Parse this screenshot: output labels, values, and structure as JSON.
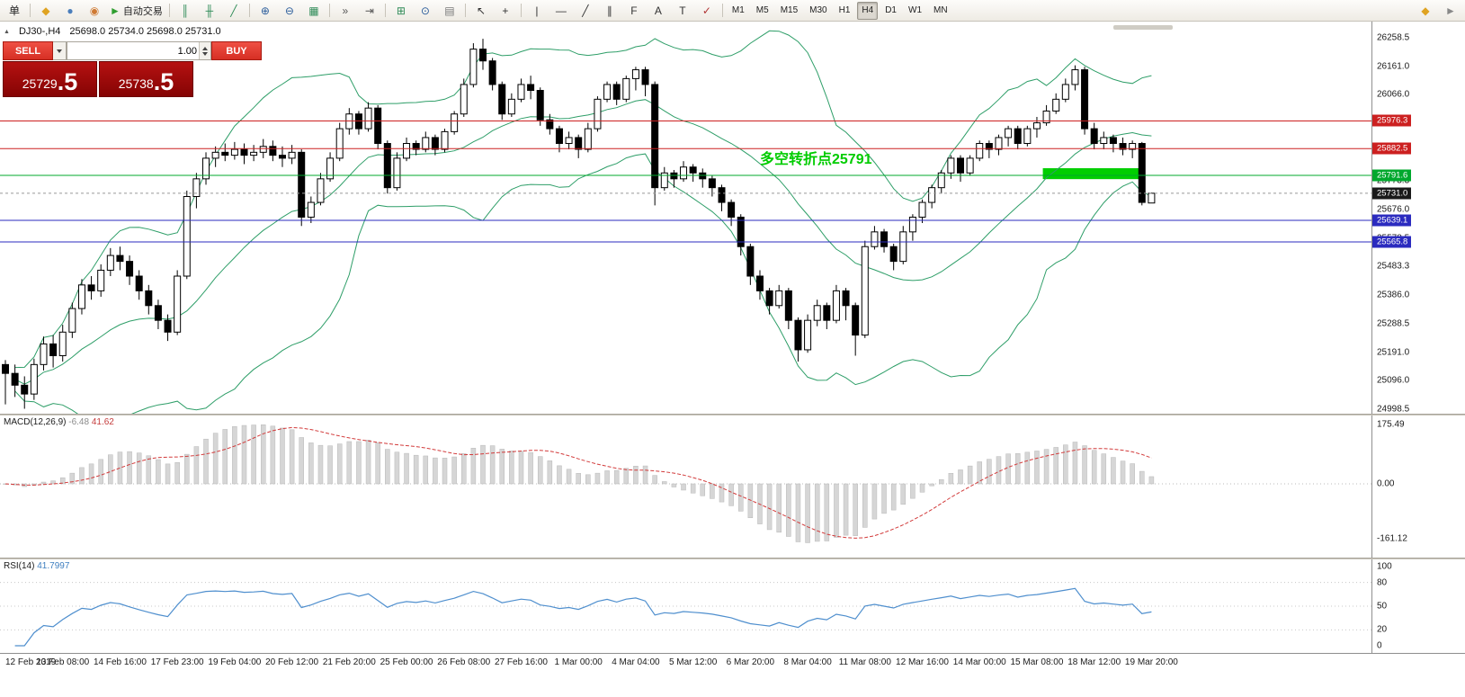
{
  "toolbar": {
    "items": [
      {
        "name": "new-order-button",
        "glyph": "单",
        "color": "#222",
        "text_button": true
      },
      {
        "sep": true
      },
      {
        "name": "chart-window-icon",
        "glyph": "◆",
        "color": "#dfa321"
      },
      {
        "name": "market-watch-icon",
        "glyph": "●",
        "color": "#4a7ebb"
      },
      {
        "name": "navigator-icon",
        "glyph": "◉",
        "color": "#cf7a33"
      },
      {
        "name": "autotrading-button",
        "glyph": "►",
        "color": "#2f9e2f",
        "label": "自动交易"
      },
      {
        "sep": true
      },
      {
        "name": "bar-chart-icon",
        "glyph": "║",
        "color": "#2e8b57"
      },
      {
        "name": "candlestick-chart-icon",
        "glyph": "╫",
        "color": "#2e8b57"
      },
      {
        "name": "line-chart-icon",
        "glyph": "╱",
        "color": "#2e8b57"
      },
      {
        "sep": true
      },
      {
        "name": "zoom-in-icon",
        "glyph": "⊕",
        "color": "#2b5d9b"
      },
      {
        "name": "zoom-out-icon",
        "glyph": "⊖",
        "color": "#2b5d9b"
      },
      {
        "name": "grid-icon",
        "glyph": "▦",
        "color": "#2e8b57"
      },
      {
        "sep": true
      },
      {
        "name": "auto-scroll-icon",
        "glyph": "»",
        "color": "#555555"
      },
      {
        "name": "chart-shift-icon",
        "glyph": "⇥",
        "color": "#555555"
      },
      {
        "sep": true
      },
      {
        "name": "new-chart-icon",
        "glyph": "⊞",
        "color": "#2e8b57"
      },
      {
        "name": "period-icon",
        "glyph": "⊙",
        "color": "#2b5d9b"
      },
      {
        "name": "indicators-icon",
        "glyph": "▤",
        "color": "#777777"
      },
      {
        "sep": true
      },
      {
        "name": "cursor-icon",
        "glyph": "↖",
        "color": "#333333"
      },
      {
        "name": "crosshair-icon",
        "glyph": "+",
        "color": "#333333"
      },
      {
        "sep": true
      },
      {
        "name": "vertical-line-icon",
        "glyph": "|",
        "color": "#333333"
      },
      {
        "name": "horizontal-line-icon",
        "glyph": "—",
        "color": "#333333"
      },
      {
        "name": "trendline-icon",
        "glyph": "╱",
        "color": "#333333"
      },
      {
        "name": "channel-icon",
        "glyph": "∥",
        "color": "#333333"
      },
      {
        "name": "fibonacci-icon",
        "glyph": "F",
        "color": "#333333"
      },
      {
        "name": "text-icon",
        "glyph": "A",
        "color": "#333333"
      },
      {
        "name": "text-label-icon",
        "glyph": "T",
        "color": "#333333"
      },
      {
        "name": "arrows-icon",
        "glyph": "✓",
        "color": "#b03333"
      },
      {
        "sep": true
      }
    ],
    "timeframes": [
      {
        "label": "M1"
      },
      {
        "label": "M5"
      },
      {
        "label": "M15"
      },
      {
        "label": "M30"
      },
      {
        "label": "H1"
      },
      {
        "label": "H4",
        "active": true
      },
      {
        "label": "D1"
      },
      {
        "label": "W1"
      },
      {
        "label": "MN"
      }
    ],
    "right_items": [
      {
        "name": "pin-icon",
        "glyph": "◆",
        "color": "#dfa321"
      },
      {
        "name": "detach-icon",
        "glyph": "►",
        "color": "#888888"
      }
    ]
  },
  "chart": {
    "header": {
      "collapse_glyph": "▲",
      "symbol_period": "DJ30-,H4",
      "ohlc": "25698.0 25734.0 25698.0 25731.0"
    },
    "trade_panel": {
      "sell_label": "SELL",
      "buy_label": "BUY",
      "volume": "1.00",
      "sell_price_main": "25729",
      "sell_price_frac": ".5",
      "buy_price_main": "25738",
      "buy_price_frac": ".5"
    }
  },
  "chart_data": {
    "type": "candlestick",
    "symbol": "DJ30-",
    "timeframe": "H4",
    "title": "DJ30-,H4",
    "ylim": [
      24998.5,
      26258.5
    ],
    "y_ticks": {
      "labels": [
        "26258.5",
        "26161.0",
        "26066.0",
        "25968.5",
        "25871.0",
        "25773.3",
        "25676.0",
        "25578.5",
        "25483.3",
        "25386.0",
        "25288.5",
        "25191.0",
        "25096.0",
        "24998.5"
      ],
      "values": [
        26258.5,
        26161.0,
        26066.0,
        25968.5,
        25871.0,
        25773.3,
        25676.0,
        25578.5,
        25483.3,
        25386.0,
        25288.5,
        25191.0,
        25096.0,
        24998.5
      ]
    },
    "x_ticks": {
      "labels": [
        "12 Feb 2019",
        "13 Feb 08:00",
        "14 Feb 16:00",
        "17 Feb 23:00",
        "19 Feb 04:00",
        "20 Feb 12:00",
        "21 Feb 20:00",
        "25 Feb 00:00",
        "26 Feb 08:00",
        "27 Feb 16:00",
        "1 Mar 00:00",
        "4 Mar 04:00",
        "5 Mar 12:00",
        "6 Mar 20:00",
        "8 Mar 04:00",
        "11 Mar 08:00",
        "12 Mar 16:00",
        "14 Mar 00:00",
        "15 Mar 08:00",
        "18 Mar 12:00",
        "19 Mar 20:00"
      ],
      "step": 6
    },
    "bands": {
      "type": "bollinger",
      "period": 20,
      "deviation": 2,
      "color": "#2e9e68"
    },
    "hlines": [
      {
        "price": 25976.3,
        "label": "25976.3",
        "color": "#cc2020"
      },
      {
        "price": 25882.5,
        "label": "25882.5",
        "color": "#cc2020"
      },
      {
        "price": 25791.6,
        "label": "25791.6",
        "color": "#00a82d"
      },
      {
        "price": 25639.1,
        "label": "25639.1",
        "color": "#2b2bbf"
      },
      {
        "price": 25565.8,
        "label": "25565.8",
        "color": "#2b2bbf"
      }
    ],
    "current_price": {
      "price": 25731.0,
      "label": "25731.0",
      "color": "#1a1a1a"
    },
    "rect": {
      "start_index": 109,
      "end_index": 119,
      "price_top": 25816,
      "price_bottom": 25779,
      "color": "#00ce00"
    },
    "annotation": {
      "text": "多空转折点25791",
      "color": "#00cc00",
      "x": 845,
      "y": 158
    },
    "candles": [
      [
        25150,
        25165,
        25015,
        25120
      ],
      [
        25120,
        25150,
        25040,
        25080
      ],
      [
        25080,
        25110,
        25000,
        25050
      ],
      [
        25050,
        25170,
        25030,
        25150
      ],
      [
        25150,
        25245,
        25130,
        25220
      ],
      [
        25220,
        25250,
        25140,
        25180
      ],
      [
        25180,
        25285,
        25160,
        25260
      ],
      [
        25260,
        25360,
        25240,
        25340
      ],
      [
        25340,
        25440,
        25320,
        25420
      ],
      [
        25420,
        25450,
        25370,
        25400
      ],
      [
        25400,
        25490,
        25380,
        25470
      ],
      [
        25470,
        25545,
        25450,
        25520
      ],
      [
        25520,
        25550,
        25470,
        25500
      ],
      [
        25500,
        25520,
        25420,
        25450
      ],
      [
        25450,
        25470,
        25370,
        25400
      ],
      [
        25400,
        25420,
        25320,
        25350
      ],
      [
        25350,
        25370,
        25270,
        25300
      ],
      [
        25300,
        25320,
        25230,
        25260
      ],
      [
        25260,
        25470,
        25250,
        25450
      ],
      [
        25450,
        25740,
        25440,
        25720
      ],
      [
        25720,
        25800,
        25680,
        25780
      ],
      [
        25780,
        25870,
        25760,
        25850
      ],
      [
        25850,
        25890,
        25820,
        25870
      ],
      [
        25870,
        25900,
        25840,
        25860
      ],
      [
        25860,
        25905,
        25845,
        25880
      ],
      [
        25880,
        25900,
        25830,
        25860
      ],
      [
        25860,
        25895,
        25840,
        25870
      ],
      [
        25870,
        25915,
        25850,
        25890
      ],
      [
        25890,
        25910,
        25840,
        25860
      ],
      [
        25860,
        25890,
        25820,
        25850
      ],
      [
        25850,
        25895,
        25830,
        25870
      ],
      [
        25870,
        25880,
        25620,
        25650
      ],
      [
        25650,
        25720,
        25630,
        25700
      ],
      [
        25700,
        25800,
        25690,
        25780
      ],
      [
        25780,
        25870,
        25770,
        25850
      ],
      [
        25850,
        25970,
        25840,
        25950
      ],
      [
        25950,
        26020,
        25930,
        26000
      ],
      [
        26000,
        26010,
        25930,
        25950
      ],
      [
        25950,
        26040,
        25940,
        26020
      ],
      [
        26020,
        26030,
        25880,
        25900
      ],
      [
        25900,
        25910,
        25730,
        25750
      ],
      [
        25750,
        25870,
        25740,
        25850
      ],
      [
        25850,
        25920,
        25840,
        25900
      ],
      [
        25900,
        25910,
        25860,
        25880
      ],
      [
        25880,
        25940,
        25870,
        25920
      ],
      [
        25920,
        25930,
        25860,
        25880
      ],
      [
        25880,
        25950,
        25870,
        25940
      ],
      [
        25940,
        26010,
        25930,
        26000
      ],
      [
        26000,
        26120,
        25990,
        26100
      ],
      [
        26100,
        26240,
        26090,
        26220
      ],
      [
        26220,
        26255,
        26150,
        26180
      ],
      [
        26180,
        26190,
        26080,
        26100
      ],
      [
        26100,
        26110,
        25980,
        26000
      ],
      [
        26000,
        26070,
        25990,
        26050
      ],
      [
        26050,
        26120,
        26040,
        26100
      ],
      [
        26100,
        26130,
        26050,
        26080
      ],
      [
        26080,
        26090,
        25960,
        25980
      ],
      [
        25980,
        26000,
        25930,
        25950
      ],
      [
        25950,
        25960,
        25870,
        25900
      ],
      [
        25900,
        25940,
        25880,
        25920
      ],
      [
        25920,
        25930,
        25850,
        25880
      ],
      [
        25880,
        25970,
        25870,
        25950
      ],
      [
        25950,
        26060,
        25940,
        26050
      ],
      [
        26050,
        26110,
        26040,
        26100
      ],
      [
        26100,
        26110,
        26030,
        26050
      ],
      [
        26050,
        26130,
        26040,
        26120
      ],
      [
        26120,
        26160,
        26080,
        26150
      ],
      [
        26150,
        26160,
        26060,
        26100
      ],
      [
        26100,
        26110,
        25690,
        25750
      ],
      [
        25750,
        25820,
        25740,
        25800
      ],
      [
        25800,
        25810,
        25750,
        25780
      ],
      [
        25780,
        25840,
        25770,
        25820
      ],
      [
        25820,
        25830,
        25770,
        25800
      ],
      [
        25800,
        25815,
        25750,
        25780
      ],
      [
        25780,
        25790,
        25720,
        25750
      ],
      [
        25750,
        25760,
        25670,
        25700
      ],
      [
        25700,
        25710,
        25620,
        25650
      ],
      [
        25650,
        25660,
        25520,
        25550
      ],
      [
        25550,
        25560,
        25420,
        25450
      ],
      [
        25450,
        25470,
        25370,
        25400
      ],
      [
        25400,
        25410,
        25320,
        25350
      ],
      [
        25350,
        25420,
        25340,
        25400
      ],
      [
        25400,
        25410,
        25270,
        25300
      ],
      [
        25300,
        25310,
        25160,
        25200
      ],
      [
        25200,
        25320,
        25190,
        25300
      ],
      [
        25300,
        25370,
        25280,
        25350
      ],
      [
        25350,
        25360,
        25270,
        25300
      ],
      [
        25300,
        25420,
        25290,
        25400
      ],
      [
        25400,
        25410,
        25300,
        25350
      ],
      [
        25350,
        25360,
        25180,
        25250
      ],
      [
        25250,
        25570,
        25240,
        25550
      ],
      [
        25550,
        25620,
        25540,
        25600
      ],
      [
        25600,
        25610,
        25530,
        25550
      ],
      [
        25550,
        25560,
        25470,
        25500
      ],
      [
        25500,
        25620,
        25490,
        25600
      ],
      [
        25600,
        25660,
        25570,
        25650
      ],
      [
        25650,
        25710,
        25630,
        25700
      ],
      [
        25700,
        25760,
        25680,
        25750
      ],
      [
        25750,
        25810,
        25730,
        25800
      ],
      [
        25800,
        25860,
        25780,
        25850
      ],
      [
        25850,
        25860,
        25770,
        25800
      ],
      [
        25800,
        25860,
        25790,
        25850
      ],
      [
        25850,
        25910,
        25840,
        25900
      ],
      [
        25900,
        25910,
        25850,
        25880
      ],
      [
        25880,
        25930,
        25860,
        25920
      ],
      [
        25920,
        25960,
        25890,
        25950
      ],
      [
        25950,
        25960,
        25880,
        25900
      ],
      [
        25900,
        25960,
        25890,
        25950
      ],
      [
        25950,
        25990,
        25920,
        25970
      ],
      [
        25970,
        26030,
        25960,
        26010
      ],
      [
        26010,
        26070,
        26000,
        26050
      ],
      [
        26050,
        26120,
        26040,
        26100
      ],
      [
        26100,
        26165,
        26080,
        26150
      ],
      [
        26150,
        26160,
        25930,
        25950
      ],
      [
        25950,
        25970,
        25880,
        25900
      ],
      [
        25900,
        25940,
        25880,
        25920
      ],
      [
        25920,
        25930,
        25870,
        25900
      ],
      [
        25900,
        25920,
        25860,
        25880
      ],
      [
        25880,
        25910,
        25850,
        25900
      ],
      [
        25900,
        25905,
        25690,
        25700
      ],
      [
        25698,
        25734,
        25698,
        25731
      ]
    ]
  },
  "macd": {
    "label": "MACD(12,26,9)",
    "value_main": "-6.48",
    "value_signal": "41.62",
    "fast": 12,
    "slow": 26,
    "signal": 9,
    "axis_labels": [
      "175.49",
      "0.00",
      "-161.12"
    ],
    "axis_values": [
      175.49,
      0,
      -161.12
    ],
    "histogram_color": "#d6d6d6",
    "signal_color": "#d23b3b"
  },
  "rsi": {
    "label": "RSI(14)",
    "value": "41.7997",
    "period": 14,
    "axis_labels": [
      "100",
      "80",
      "50",
      "20",
      "0"
    ],
    "axis_values": [
      100,
      80,
      50,
      20,
      0
    ],
    "levels": [
      80,
      50,
      20
    ],
    "line_color": "#4f8fce"
  }
}
